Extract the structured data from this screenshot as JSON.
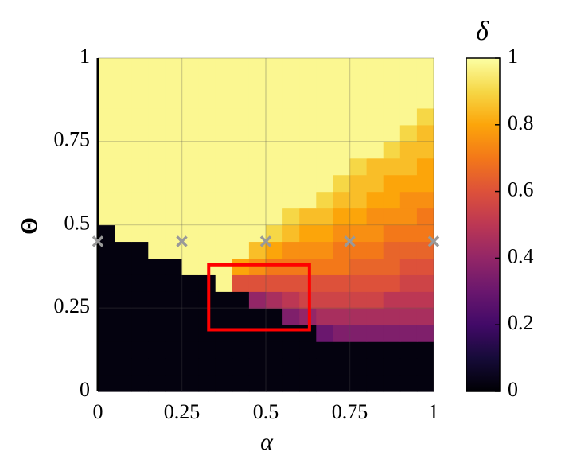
{
  "chart_data": {
    "type": "heatmap",
    "xlabel": "α",
    "ylabel": "Θ",
    "xbins": [
      0,
      0.05,
      0.1,
      0.15,
      0.2,
      0.25,
      0.3,
      0.35,
      0.4,
      0.45,
      0.5,
      0.55,
      0.6,
      0.65,
      0.7,
      0.75,
      0.8,
      0.85,
      0.9,
      0.95,
      1
    ],
    "ybins": [
      0,
      0.05,
      0.1,
      0.15,
      0.2,
      0.25,
      0.3,
      0.35,
      0.4,
      0.45,
      0.5,
      0.55,
      0.6,
      0.65,
      0.7,
      0.75,
      0.8,
      0.85,
      0.9,
      0.95,
      1
    ],
    "z": [
      [
        0.02,
        0.02,
        0.02,
        0.02,
        0.02,
        0.02,
        0.02,
        0.02,
        0.02,
        0.02,
        0.02,
        0.02,
        0.02,
        0.02,
        0.02,
        0.02,
        0.02,
        0.02,
        0.02,
        0.02
      ],
      [
        0.02,
        0.02,
        0.02,
        0.02,
        0.02,
        0.02,
        0.02,
        0.02,
        0.02,
        0.02,
        0.02,
        0.02,
        0.02,
        0.02,
        0.02,
        0.02,
        0.02,
        0.02,
        0.02,
        0.02
      ],
      [
        0.02,
        0.02,
        0.02,
        0.02,
        0.02,
        0.02,
        0.02,
        0.02,
        0.02,
        0.02,
        0.02,
        0.02,
        0.02,
        0.02,
        0.02,
        0.02,
        0.02,
        0.02,
        0.02,
        0.02
      ],
      [
        0.02,
        0.02,
        0.02,
        0.02,
        0.02,
        0.02,
        0.02,
        0.02,
        0.02,
        0.02,
        0.02,
        0.02,
        0.02,
        0.3,
        0.35,
        0.35,
        0.35,
        0.35,
        0.35,
        0.35
      ],
      [
        0.02,
        0.02,
        0.02,
        0.02,
        0.02,
        0.02,
        0.02,
        0.02,
        0.02,
        0.02,
        0.02,
        0.35,
        0.4,
        0.45,
        0.45,
        0.45,
        0.45,
        0.45,
        0.45,
        0.45
      ],
      [
        0.02,
        0.02,
        0.02,
        0.02,
        0.02,
        0.02,
        0.02,
        0.02,
        0.02,
        0.4,
        0.45,
        0.5,
        0.55,
        0.55,
        0.55,
        0.55,
        0.55,
        0.5,
        0.5,
        0.5
      ],
      [
        0.02,
        0.02,
        0.02,
        0.02,
        0.02,
        0.02,
        0.02,
        0.98,
        0.6,
        0.6,
        0.6,
        0.6,
        0.6,
        0.6,
        0.6,
        0.6,
        0.6,
        0.6,
        0.55,
        0.55
      ],
      [
        0.02,
        0.02,
        0.02,
        0.02,
        0.02,
        0.98,
        0.98,
        0.98,
        0.8,
        0.75,
        0.7,
        0.7,
        0.7,
        0.7,
        0.7,
        0.65,
        0.65,
        0.65,
        0.6,
        0.6
      ],
      [
        0.02,
        0.02,
        0.02,
        0.98,
        0.98,
        0.98,
        0.98,
        0.98,
        0.98,
        0.85,
        0.8,
        0.75,
        0.75,
        0.75,
        0.7,
        0.7,
        0.7,
        0.65,
        0.65,
        0.65
      ],
      [
        0.02,
        0.98,
        0.98,
        0.98,
        0.98,
        0.98,
        0.98,
        0.98,
        0.98,
        0.98,
        0.9,
        0.85,
        0.8,
        0.8,
        0.75,
        0.75,
        0.75,
        0.7,
        0.7,
        0.7
      ],
      [
        0.98,
        0.98,
        0.98,
        0.98,
        0.98,
        0.98,
        0.98,
        0.98,
        0.98,
        0.98,
        0.98,
        0.9,
        0.85,
        0.85,
        0.8,
        0.8,
        0.75,
        0.75,
        0.75,
        0.7
      ],
      [
        0.98,
        0.98,
        0.98,
        0.98,
        0.98,
        0.98,
        0.98,
        0.98,
        0.98,
        0.98,
        0.98,
        0.98,
        0.98,
        0.9,
        0.85,
        0.85,
        0.8,
        0.8,
        0.75,
        0.75
      ],
      [
        0.98,
        0.98,
        0.98,
        0.98,
        0.98,
        0.98,
        0.98,
        0.98,
        0.98,
        0.98,
        0.98,
        0.98,
        0.98,
        0.98,
        0.9,
        0.85,
        0.85,
        0.8,
        0.8,
        0.8
      ],
      [
        0.98,
        0.98,
        0.98,
        0.98,
        0.98,
        0.98,
        0.98,
        0.98,
        0.98,
        0.98,
        0.98,
        0.98,
        0.98,
        0.98,
        0.98,
        0.9,
        0.85,
        0.85,
        0.85,
        0.8
      ],
      [
        0.98,
        0.98,
        0.98,
        0.98,
        0.98,
        0.98,
        0.98,
        0.98,
        0.98,
        0.98,
        0.98,
        0.98,
        0.98,
        0.98,
        0.98,
        0.98,
        0.98,
        0.9,
        0.85,
        0.85
      ],
      [
        0.98,
        0.98,
        0.98,
        0.98,
        0.98,
        0.98,
        0.98,
        0.98,
        0.98,
        0.98,
        0.98,
        0.98,
        0.98,
        0.98,
        0.98,
        0.98,
        0.98,
        0.98,
        0.9,
        0.85
      ],
      [
        0.98,
        0.98,
        0.98,
        0.98,
        0.98,
        0.98,
        0.98,
        0.98,
        0.98,
        0.98,
        0.98,
        0.98,
        0.98,
        0.98,
        0.98,
        0.98,
        0.98,
        0.98,
        0.98,
        0.9
      ],
      [
        0.98,
        0.98,
        0.98,
        0.98,
        0.98,
        0.98,
        0.98,
        0.98,
        0.98,
        0.98,
        0.98,
        0.98,
        0.98,
        0.98,
        0.98,
        0.98,
        0.98,
        0.98,
        0.98,
        0.98
      ],
      [
        0.98,
        0.98,
        0.98,
        0.98,
        0.98,
        0.98,
        0.98,
        0.98,
        0.98,
        0.98,
        0.98,
        0.98,
        0.98,
        0.98,
        0.98,
        0.98,
        0.98,
        0.98,
        0.98,
        0.98
      ],
      [
        0.98,
        0.98,
        0.98,
        0.98,
        0.98,
        0.98,
        0.98,
        0.98,
        0.98,
        0.98,
        0.98,
        0.98,
        0.98,
        0.98,
        0.98,
        0.98,
        0.98,
        0.98,
        0.98,
        0.98
      ]
    ],
    "xlim": [
      0,
      1
    ],
    "ylim": [
      0,
      1
    ],
    "xticks": [
      0,
      0.25,
      0.5,
      0.75,
      1
    ],
    "yticks": [
      0,
      0.25,
      0.5,
      0.75,
      1
    ],
    "grid": true,
    "colormap": "inferno",
    "colorbar": {
      "label": "δ",
      "lim": [
        0,
        1
      ],
      "ticks": [
        0,
        0.2,
        0.4,
        0.6,
        0.8,
        1
      ]
    },
    "markers": {
      "x": [
        0,
        0.25,
        0.5,
        0.75,
        1
      ],
      "y": [
        0.45,
        0.45,
        0.45,
        0.45,
        0.45
      ],
      "color": "#999999"
    },
    "highlight": {
      "xlim": [
        0.33,
        0.63
      ],
      "ylim": [
        0.185,
        0.38
      ],
      "color": "#ff0000"
    }
  }
}
